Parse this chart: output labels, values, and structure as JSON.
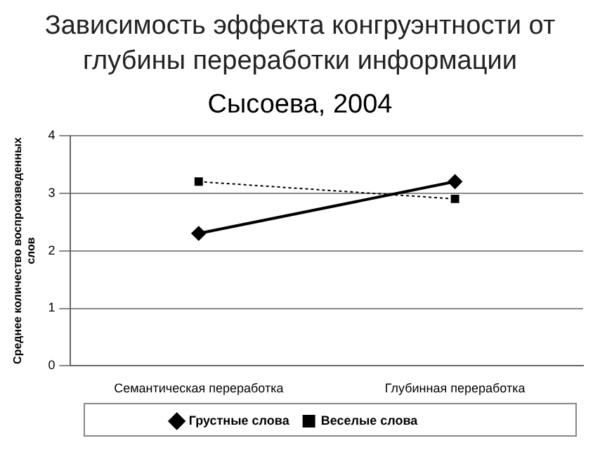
{
  "chart_data": {
    "type": "line",
    "title": "Зависимость эффекта конгруэнтности от глубины переработки информации",
    "subtitle": "Сысоева, 2004",
    "ylabel": "Среднее количество воспроизведенных слов",
    "categories": [
      "Семантическая переработка",
      "Глубинная переработка"
    ],
    "series": [
      {
        "name": "Грустные слова",
        "color": "#000000",
        "values": [
          2.3,
          3.2
        ],
        "marker": "diamond",
        "line_style": "solid"
      },
      {
        "name": "Веселые слова",
        "color": "#000000",
        "values": [
          3.2,
          2.9
        ],
        "marker": "square",
        "line_style": "dotted"
      }
    ],
    "ylim": [
      0,
      4
    ],
    "yticks": [
      0,
      1,
      2,
      3,
      4
    ],
    "grid": "y",
    "legend": "bottom"
  }
}
